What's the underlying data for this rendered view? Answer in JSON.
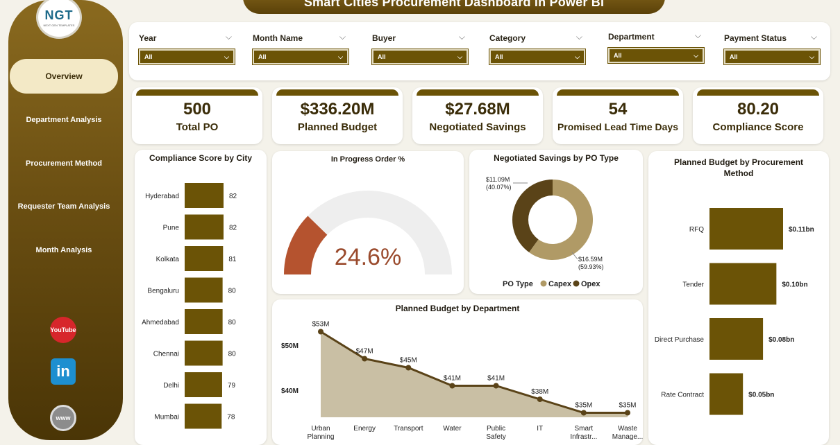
{
  "header": {
    "title": "Smart Cities Procurement Dashboard in Power BI"
  },
  "logo": {
    "brand": "NGT",
    "tagline": "NEXT GEN TEMPLATES"
  },
  "sidebar": {
    "items": [
      {
        "label": "Overview",
        "active": true
      },
      {
        "label": "Department Analysis"
      },
      {
        "label": "Procurement Method"
      },
      {
        "label": "Requester Team Analysis"
      },
      {
        "label": "Month Analysis"
      }
    ],
    "social": [
      "YouTube",
      "in",
      "www"
    ]
  },
  "filters": [
    {
      "label": "Year",
      "value": "All"
    },
    {
      "label": "Month Name",
      "value": "All"
    },
    {
      "label": "Buyer",
      "value": "All"
    },
    {
      "label": "Category",
      "value": "All"
    },
    {
      "label": "Department",
      "value": "All"
    },
    {
      "label": "Payment Status",
      "value": "All"
    }
  ],
  "kpis": [
    {
      "value": "500",
      "label": "Total PO"
    },
    {
      "value": "$336.20M",
      "label": "Planned Budget"
    },
    {
      "value": "$27.68M",
      "label": "Negotiated Savings"
    },
    {
      "value": "54",
      "label": "Promised Lead Time Days"
    },
    {
      "value": "80.20",
      "label": "Compliance Score"
    }
  ],
  "colors": {
    "brand": "#6b5306",
    "gauge": "#b5532f",
    "capex": "#b09a66",
    "opex": "#5a4318",
    "area": "#c9bfa4"
  },
  "chart_data": [
    {
      "id": "compliance_by_city",
      "type": "bar",
      "orientation": "horizontal",
      "title": "Compliance Score by City",
      "categories": [
        "Hyderabad",
        "Pune",
        "Kolkata",
        "Bengaluru",
        "Ahmedabad",
        "Chennai",
        "Delhi",
        "Mumbai"
      ],
      "values": [
        82,
        82,
        81,
        80,
        80,
        80,
        79,
        78
      ]
    },
    {
      "id": "in_progress_gauge",
      "type": "gauge",
      "title": "In Progress Order %",
      "value": 24.6,
      "value_label": "24.6%",
      "min": 0,
      "max": 100
    },
    {
      "id": "savings_by_po_type",
      "type": "pie",
      "donut": true,
      "title": "Negotiated Savings by PO Type",
      "legend_title": "PO Type",
      "slices": [
        {
          "name": "Capex",
          "value": 16.59,
          "label": "$16.59M",
          "pct": "(59.93%)"
        },
        {
          "name": "Opex",
          "value": 11.09,
          "label": "$11.09M",
          "pct": "(40.07%)"
        }
      ]
    },
    {
      "id": "budget_by_department",
      "type": "area",
      "title": "Planned Budget by Department",
      "categories": [
        [
          "Urban",
          "Planning"
        ],
        [
          "Energy"
        ],
        [
          "Transport"
        ],
        [
          "Water"
        ],
        [
          "Public",
          "Safety"
        ],
        [
          "IT"
        ],
        [
          "Smart",
          "Infrastr..."
        ],
        [
          "Waste",
          "Manage..."
        ]
      ],
      "values": [
        53,
        47,
        45,
        41,
        41,
        38,
        35,
        35
      ],
      "labels": [
        "$53M",
        "$47M",
        "$45M",
        "$41M",
        "$41M",
        "$38M",
        "$35M",
        "$35M"
      ],
      "y_ticks": [
        {
          "value": 50,
          "label": "$50M"
        },
        {
          "value": 40,
          "label": "$40M"
        }
      ]
    },
    {
      "id": "budget_by_procurement_method",
      "type": "bar",
      "orientation": "horizontal",
      "title": "Planned Budget by Procurement Method",
      "categories": [
        "RFQ",
        "Tender",
        "Direct Purchase",
        "Rate Contract"
      ],
      "values": [
        0.11,
        0.1,
        0.08,
        0.05
      ],
      "labels": [
        "$0.11bn",
        "$0.10bn",
        "$0.08bn",
        "$0.05bn"
      ]
    }
  ]
}
